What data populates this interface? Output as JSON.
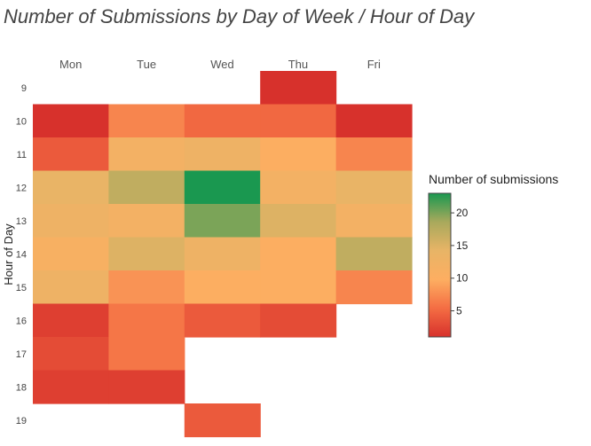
{
  "chart_data": {
    "type": "heatmap",
    "title": "Number of Submissions by Day of Week / Hour of Day",
    "ylabel": "Hour of Day",
    "xlabel": "",
    "x": [
      "Mon",
      "Tue",
      "Wed",
      "Thu",
      "Fri"
    ],
    "y": [
      "9",
      "10",
      "11",
      "12",
      "13",
      "14",
      "15",
      "16",
      "17",
      "18",
      "19"
    ],
    "z": [
      [
        null,
        null,
        null,
        1,
        null
      ],
      [
        1,
        7,
        5,
        5,
        1
      ],
      [
        4,
        12,
        13,
        10,
        7
      ],
      [
        14,
        17,
        23,
        12,
        14
      ],
      [
        13,
        12,
        20,
        15,
        12
      ],
      [
        11,
        15,
        13,
        10,
        17
      ],
      [
        13,
        8,
        10,
        10,
        7
      ],
      [
        2,
        6,
        4,
        3,
        null
      ],
      [
        3,
        6,
        null,
        null,
        null
      ],
      [
        2,
        2,
        null,
        null,
        null
      ],
      [
        null,
        null,
        4,
        null,
        null
      ]
    ],
    "colorbar": {
      "title": "Number of submissions",
      "zmin": 1,
      "zmax": 23,
      "ticks": [
        5,
        10,
        15,
        20
      ],
      "colors": [
        "#d7312c",
        "#f46d43",
        "#fdae61",
        "#e8b466",
        "#a9a95c",
        "#1a9850"
      ]
    }
  }
}
